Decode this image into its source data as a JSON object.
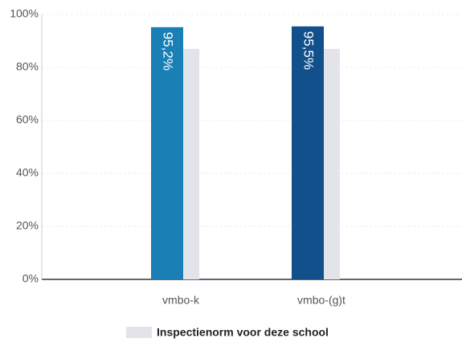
{
  "chart_data": {
    "type": "bar",
    "categories": [
      "vmbo-k",
      "vmbo-(g)t"
    ],
    "series": [
      {
        "colors": [
          "#1a7fb5",
          "#11508a"
        ],
        "values": [
          95.2,
          95.5
        ],
        "value_labels": [
          "95,2%",
          "95,5%"
        ]
      },
      {
        "name": "Inspectienorm voor deze school",
        "color": "#e3e4ea",
        "values": [
          87,
          87
        ]
      }
    ],
    "ylim": [
      0,
      100
    ],
    "yticks": [
      {
        "value": 0,
        "label": "0%"
      },
      {
        "value": 20,
        "label": "20%"
      },
      {
        "value": 40,
        "label": "40%"
      },
      {
        "value": 60,
        "label": "60%"
      },
      {
        "value": 80,
        "label": "80%"
      },
      {
        "value": 100,
        "label": "100%"
      }
    ],
    "grid": true
  }
}
